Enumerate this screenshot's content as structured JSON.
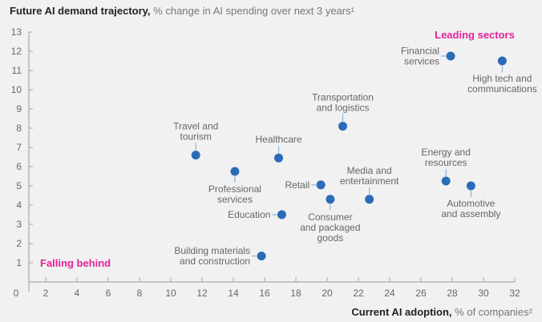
{
  "chart_data": {
    "type": "scatter",
    "title": "Future AI demand trajectory,",
    "subtitle": "% change in AI spending over next 3 years¹",
    "xlabel_bold": "Current AI adoption,",
    "xlabel_light": "% of companies²",
    "xlim": [
      0,
      32
    ],
    "ylim": [
      0,
      13
    ],
    "x_ticks": [
      0,
      2,
      4,
      6,
      8,
      10,
      12,
      14,
      16,
      18,
      20,
      22,
      24,
      26,
      28,
      30,
      32
    ],
    "y_ticks": [
      1,
      2,
      3,
      4,
      5,
      6,
      7,
      8,
      9,
      10,
      11,
      12,
      13
    ],
    "grid": false,
    "point_color": "#2b6cb8",
    "annotation_color": "#e6219b",
    "annotations": [
      {
        "text": "Leading sectors",
        "position": "top-right"
      },
      {
        "text": "Falling behind",
        "position": "bottom-left"
      }
    ],
    "points": [
      {
        "label": [
          "Financial",
          "services"
        ],
        "x": 27.9,
        "y": 11.75,
        "label_side": "left"
      },
      {
        "label": [
          "High tech and",
          "communications"
        ],
        "x": 31.2,
        "y": 11.5,
        "label_side": "below"
      },
      {
        "label": [
          "Transportation",
          "and logistics"
        ],
        "x": 21.0,
        "y": 8.1,
        "label_side": "above"
      },
      {
        "label": [
          "Travel and",
          "tourism"
        ],
        "x": 11.6,
        "y": 6.6,
        "label_side": "above"
      },
      {
        "label": [
          "Healthcare"
        ],
        "x": 16.9,
        "y": 6.45,
        "label_side": "above"
      },
      {
        "label": [
          "Professional",
          "services"
        ],
        "x": 14.1,
        "y": 5.75,
        "label_side": "below"
      },
      {
        "label": [
          "Retail"
        ],
        "x": 19.6,
        "y": 5.05,
        "label_side": "left"
      },
      {
        "label": [
          "Media and",
          "entertainment"
        ],
        "x": 22.7,
        "y": 4.3,
        "label_side": "above"
      },
      {
        "label": [
          "Consumer",
          "and packaged",
          "goods"
        ],
        "x": 20.2,
        "y": 4.3,
        "label_side": "below"
      },
      {
        "label": [
          "Education"
        ],
        "x": 17.1,
        "y": 3.5,
        "label_side": "left"
      },
      {
        "label": [
          "Energy and",
          "resources"
        ],
        "x": 27.6,
        "y": 5.25,
        "label_side": "above"
      },
      {
        "label": [
          "Automotive",
          "and assembly"
        ],
        "x": 29.2,
        "y": 5.0,
        "label_side": "below"
      },
      {
        "label": [
          "Building materials",
          "and construction"
        ],
        "x": 15.8,
        "y": 1.35,
        "label_side": "left"
      }
    ]
  }
}
